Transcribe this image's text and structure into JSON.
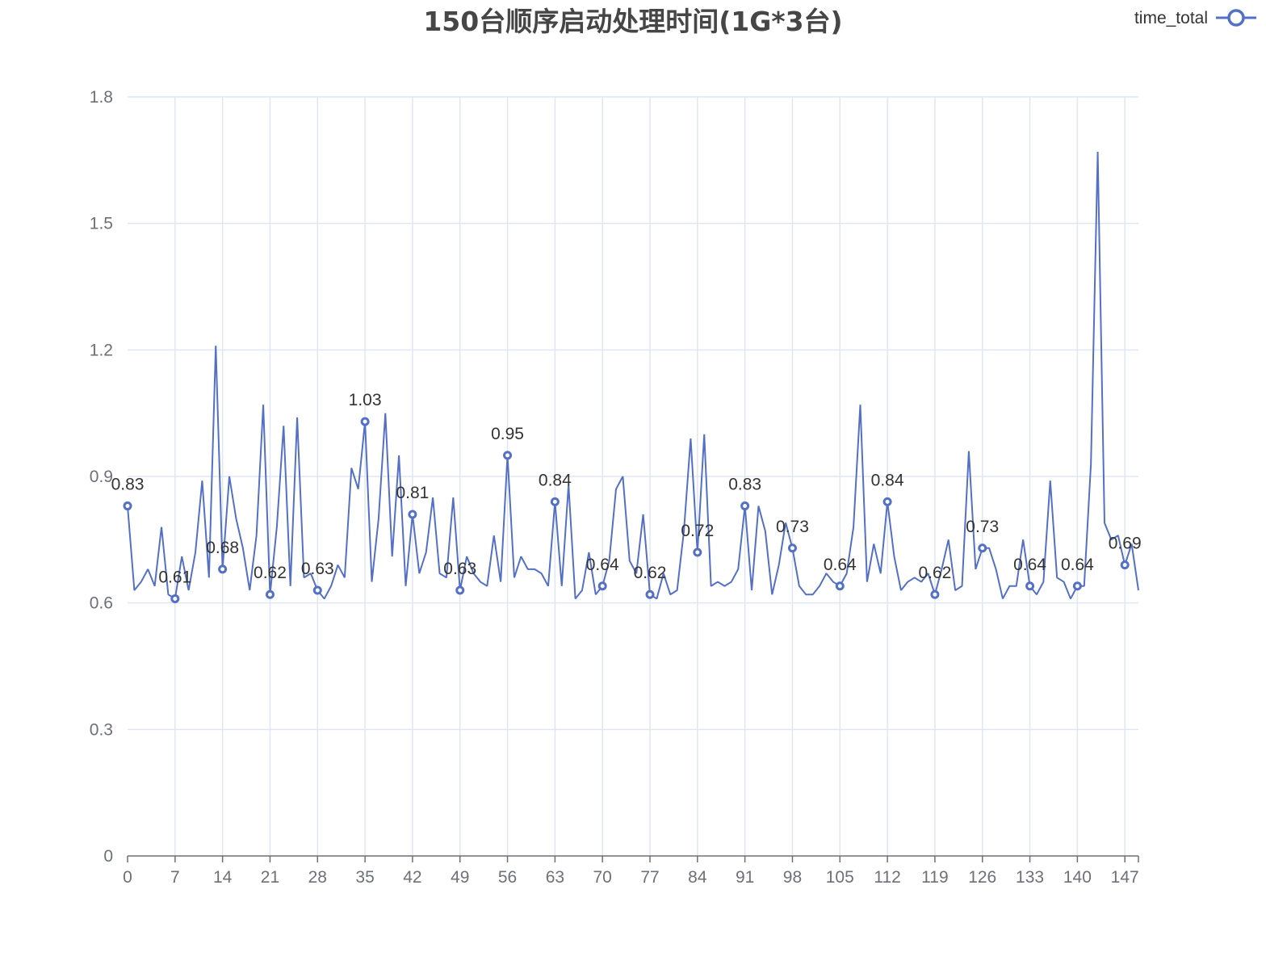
{
  "chart_data": {
    "type": "line",
    "title": "150台顺序启动处理时间(1G*3台)",
    "legend": {
      "position": "top-right",
      "entries": [
        "time_total"
      ]
    },
    "xlabel": "",
    "ylabel": "",
    "xlim": [
      0,
      149
    ],
    "ylim": [
      0,
      1.8
    ],
    "x_ticks": [
      "0",
      "7",
      "14",
      "21",
      "28",
      "35",
      "42",
      "49",
      "56",
      "63",
      "70",
      "77",
      "84",
      "91",
      "98",
      "105",
      "112",
      "119",
      "126",
      "133",
      "140",
      "147"
    ],
    "y_ticks": [
      "0",
      "0.3",
      "0.6",
      "0.9",
      "1.2",
      "1.5",
      "1.8"
    ],
    "grid": true,
    "colors": {
      "series": "#5470c6",
      "axis": "#6e7079",
      "grid": "#e0e6f1",
      "label": "#333333",
      "title": "#464646"
    },
    "series": [
      {
        "name": "time_total",
        "x": [
          0,
          1,
          2,
          3,
          4,
          5,
          6,
          7,
          8,
          9,
          10,
          11,
          12,
          13,
          14,
          15,
          16,
          17,
          18,
          19,
          20,
          21,
          22,
          23,
          24,
          25,
          26,
          27,
          28,
          29,
          30,
          31,
          32,
          33,
          34,
          35,
          36,
          37,
          38,
          39,
          40,
          41,
          42,
          43,
          44,
          45,
          46,
          47,
          48,
          49,
          50,
          51,
          52,
          53,
          54,
          55,
          56,
          57,
          58,
          59,
          60,
          61,
          62,
          63,
          64,
          65,
          66,
          67,
          68,
          69,
          70,
          71,
          72,
          73,
          74,
          75,
          76,
          77,
          78,
          79,
          80,
          81,
          82,
          83,
          84,
          85,
          86,
          87,
          88,
          89,
          90,
          91,
          92,
          93,
          94,
          95,
          96,
          97,
          98,
          99,
          100,
          101,
          102,
          103,
          104,
          105,
          106,
          107,
          108,
          109,
          110,
          111,
          112,
          113,
          114,
          115,
          116,
          117,
          118,
          119,
          120,
          121,
          122,
          123,
          124,
          125,
          126,
          127,
          128,
          129,
          130,
          131,
          132,
          133,
          134,
          135,
          136,
          137,
          138,
          139,
          140,
          141,
          142,
          143,
          144,
          145,
          146,
          147,
          148,
          149
        ],
        "values": [
          0.83,
          0.63,
          0.65,
          0.68,
          0.64,
          0.78,
          0.62,
          0.61,
          0.71,
          0.63,
          0.72,
          0.89,
          0.66,
          1.21,
          0.68,
          0.9,
          0.8,
          0.73,
          0.63,
          0.76,
          1.07,
          0.62,
          0.78,
          1.02,
          0.64,
          1.04,
          0.66,
          0.67,
          0.63,
          0.61,
          0.64,
          0.69,
          0.66,
          0.92,
          0.87,
          1.03,
          0.65,
          0.8,
          1.05,
          0.71,
          0.95,
          0.64,
          0.81,
          0.67,
          0.72,
          0.85,
          0.67,
          0.66,
          0.85,
          0.63,
          0.71,
          0.67,
          0.65,
          0.64,
          0.76,
          0.65,
          0.95,
          0.66,
          0.71,
          0.68,
          0.68,
          0.67,
          0.64,
          0.84,
          0.64,
          0.88,
          0.61,
          0.63,
          0.72,
          0.62,
          0.64,
          0.7,
          0.87,
          0.9,
          0.7,
          0.67,
          0.81,
          0.62,
          0.61,
          0.67,
          0.62,
          0.63,
          0.77,
          0.99,
          0.72,
          1.0,
          0.64,
          0.65,
          0.64,
          0.65,
          0.68,
          0.83,
          0.63,
          0.83,
          0.77,
          0.62,
          0.69,
          0.79,
          0.73,
          0.64,
          0.62,
          0.62,
          0.64,
          0.67,
          0.65,
          0.64,
          0.67,
          0.78,
          1.07,
          0.65,
          0.74,
          0.67,
          0.84,
          0.71,
          0.63,
          0.65,
          0.66,
          0.65,
          0.67,
          0.62,
          0.68,
          0.75,
          0.63,
          0.64,
          0.96,
          0.68,
          0.73,
          0.73,
          0.68,
          0.61,
          0.64,
          0.64,
          0.75,
          0.64,
          0.62,
          0.65,
          0.89,
          0.66,
          0.65,
          0.61,
          0.64,
          0.64,
          0.93,
          1.67,
          0.79,
          0.75,
          0.76,
          0.69,
          0.74,
          0.63
        ],
        "labeled_points": [
          {
            "x": 0,
            "label": "0.83"
          },
          {
            "x": 7,
            "label": "0.61"
          },
          {
            "x": 14,
            "label": "0.68"
          },
          {
            "x": 21,
            "label": "0.62"
          },
          {
            "x": 28,
            "label": "0.63"
          },
          {
            "x": 35,
            "label": "1.03"
          },
          {
            "x": 42,
            "label": "0.81"
          },
          {
            "x": 49,
            "label": "0.63"
          },
          {
            "x": 56,
            "label": "0.95"
          },
          {
            "x": 63,
            "label": "0.84"
          },
          {
            "x": 70,
            "label": "0.64"
          },
          {
            "x": 77,
            "label": "0.62"
          },
          {
            "x": 84,
            "label": "0.72"
          },
          {
            "x": 91,
            "label": "0.83"
          },
          {
            "x": 98,
            "label": "0.73"
          },
          {
            "x": 105,
            "label": "0.64"
          },
          {
            "x": 112,
            "label": "0.84"
          },
          {
            "x": 119,
            "label": "0.62"
          },
          {
            "x": 126,
            "label": "0.73"
          },
          {
            "x": 133,
            "label": "0.64"
          },
          {
            "x": 140,
            "label": "0.64"
          },
          {
            "x": 147,
            "label": "0.69"
          }
        ]
      }
    ]
  }
}
